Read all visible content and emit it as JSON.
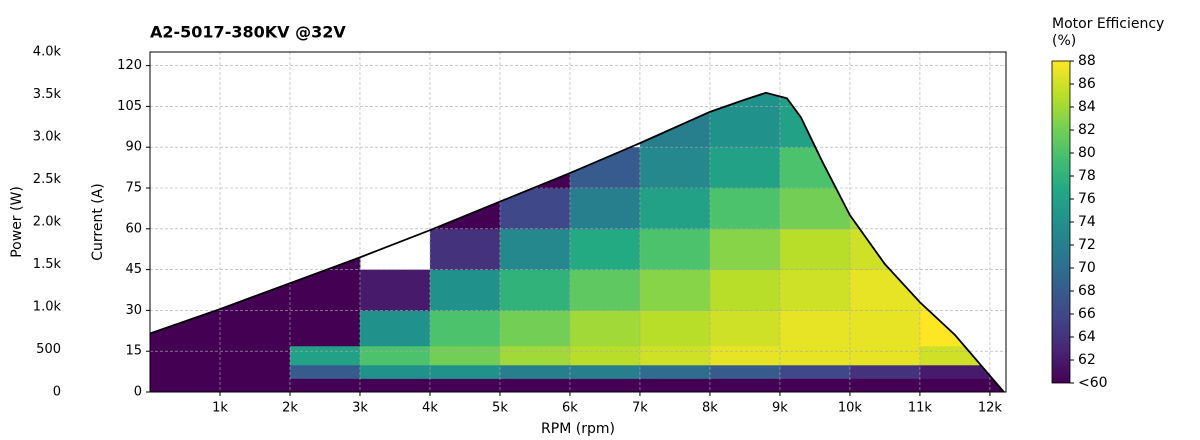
{
  "chart_data": {
    "type": "heatmap",
    "title": "A2-5017-380KV @32V",
    "xlabel": "RPM (rpm)",
    "ylabel": "Current (A)",
    "y2label": "Power (W)",
    "colorbar_label": "Motor Efficiency (%)",
    "xlim": [
      0,
      12230
    ],
    "ylim": [
      0,
      125
    ],
    "y2lim": [
      0,
      4000
    ],
    "clim": [
      60,
      88
    ],
    "grid": true,
    "colormap": "viridis",
    "xticks": [
      {
        "value": 1000,
        "label": "1k"
      },
      {
        "value": 2000,
        "label": "2k"
      },
      {
        "value": 3000,
        "label": "3k"
      },
      {
        "value": 4000,
        "label": "4k"
      },
      {
        "value": 5000,
        "label": "5k"
      },
      {
        "value": 6000,
        "label": "6k"
      },
      {
        "value": 7000,
        "label": "7k"
      },
      {
        "value": 8000,
        "label": "8k"
      },
      {
        "value": 9000,
        "label": "9k"
      },
      {
        "value": 10000,
        "label": "10k"
      },
      {
        "value": 11000,
        "label": "11k"
      },
      {
        "value": 12000,
        "label": "12k"
      }
    ],
    "yticks": [
      0,
      15,
      30,
      45,
      60,
      75,
      90,
      105,
      120
    ],
    "y2ticks": [
      0,
      500,
      {
        "value": 1000,
        "label": "1.0k"
      },
      {
        "value": 1500,
        "label": "1.5k"
      },
      {
        "value": 2000,
        "label": "2.0k"
      },
      {
        "value": 2500,
        "label": "2.5k"
      },
      {
        "value": 3000,
        "label": "3.0k"
      },
      {
        "value": 3500,
        "label": "3.5k"
      },
      {
        "value": 4000,
        "label": "4.0k"
      }
    ],
    "cticks": [
      {
        "value": 60,
        "label": "<60"
      },
      62,
      64,
      66,
      68,
      70,
      72,
      74,
      76,
      78,
      80,
      82,
      84,
      86,
      88
    ],
    "envelope": {
      "x": [
        0,
        1000,
        2000,
        3000,
        4000,
        5000,
        6000,
        7000,
        8000,
        8500,
        8800,
        9100,
        9300,
        9600,
        10000,
        10500,
        11000,
        11500,
        12000,
        12200
      ],
      "y": [
        21.5,
        30.5,
        40,
        49.5,
        59.5,
        70,
        80.5,
        91.5,
        103,
        107.5,
        110,
        108,
        101,
        85,
        65,
        47,
        33,
        21,
        6,
        0
      ]
    },
    "x_bins": [
      0,
      1000,
      2000,
      3000,
      4000,
      5000,
      6000,
      7000,
      8000,
      9000,
      10000,
      11000,
      12000,
      12230
    ],
    "y_bins": [
      0,
      5,
      10,
      17,
      30,
      45,
      60,
      75,
      90,
      115
    ],
    "z": [
      [
        55,
        55,
        55,
        55,
        55,
        55,
        55,
        55,
        55,
        55,
        55,
        55,
        55
      ],
      [
        55,
        55,
        68,
        74,
        74,
        72,
        72,
        70,
        68,
        66,
        64,
        62,
        60
      ],
      [
        55,
        55,
        76,
        80,
        82,
        84,
        85,
        86,
        87,
        87,
        87,
        86,
        null
      ],
      [
        55,
        55,
        60,
        74,
        80,
        82,
        84,
        85,
        86,
        87,
        87,
        88,
        null
      ],
      [
        null,
        55,
        55,
        62,
        74,
        78,
        81,
        83,
        85,
        86,
        87,
        88,
        null
      ],
      [
        null,
        null,
        55,
        null,
        64,
        73,
        77,
        80,
        83,
        85,
        86,
        null,
        null
      ],
      [
        null,
        null,
        null,
        null,
        58,
        66,
        72,
        76,
        80,
        82,
        84,
        null,
        null
      ],
      [
        null,
        null,
        null,
        null,
        null,
        60,
        68,
        73,
        76,
        80,
        null,
        null,
        null
      ],
      [
        null,
        null,
        null,
        null,
        null,
        null,
        null,
        72,
        74,
        76,
        null,
        null,
        null
      ]
    ]
  }
}
